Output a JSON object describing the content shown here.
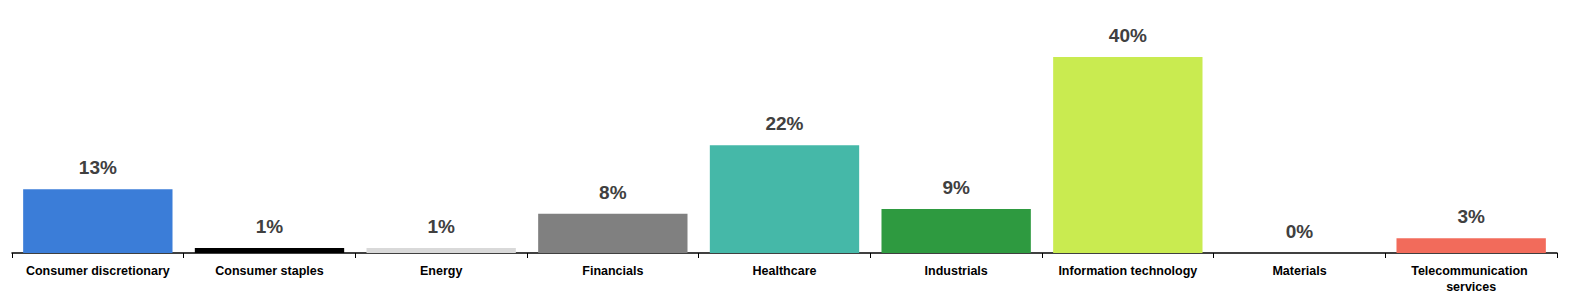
{
  "chart_data": {
    "type": "bar",
    "categories": [
      "Consumer discretionary",
      "Consumer staples",
      "Energy",
      "Financials",
      "Healthcare",
      "Industrials",
      "Information technology",
      "Materials",
      "Telecommunication services"
    ],
    "values": [
      13,
      1,
      1,
      8,
      22,
      9,
      40,
      0,
      3
    ],
    "value_labels": [
      "13%",
      "1%",
      "1%",
      "8%",
      "22%",
      "9%",
      "40%",
      "0%",
      "3%"
    ],
    "colors": [
      "#3b7dd8",
      "#000000",
      "#d9d9d9",
      "#808080",
      "#45b8a8",
      "#2e9a40",
      "#c9eb50",
      "#a5a5a5",
      "#f26b5b"
    ],
    "ylim": [
      0,
      40
    ],
    "data_labels": true,
    "grid": false,
    "tick_labels": "x"
  }
}
